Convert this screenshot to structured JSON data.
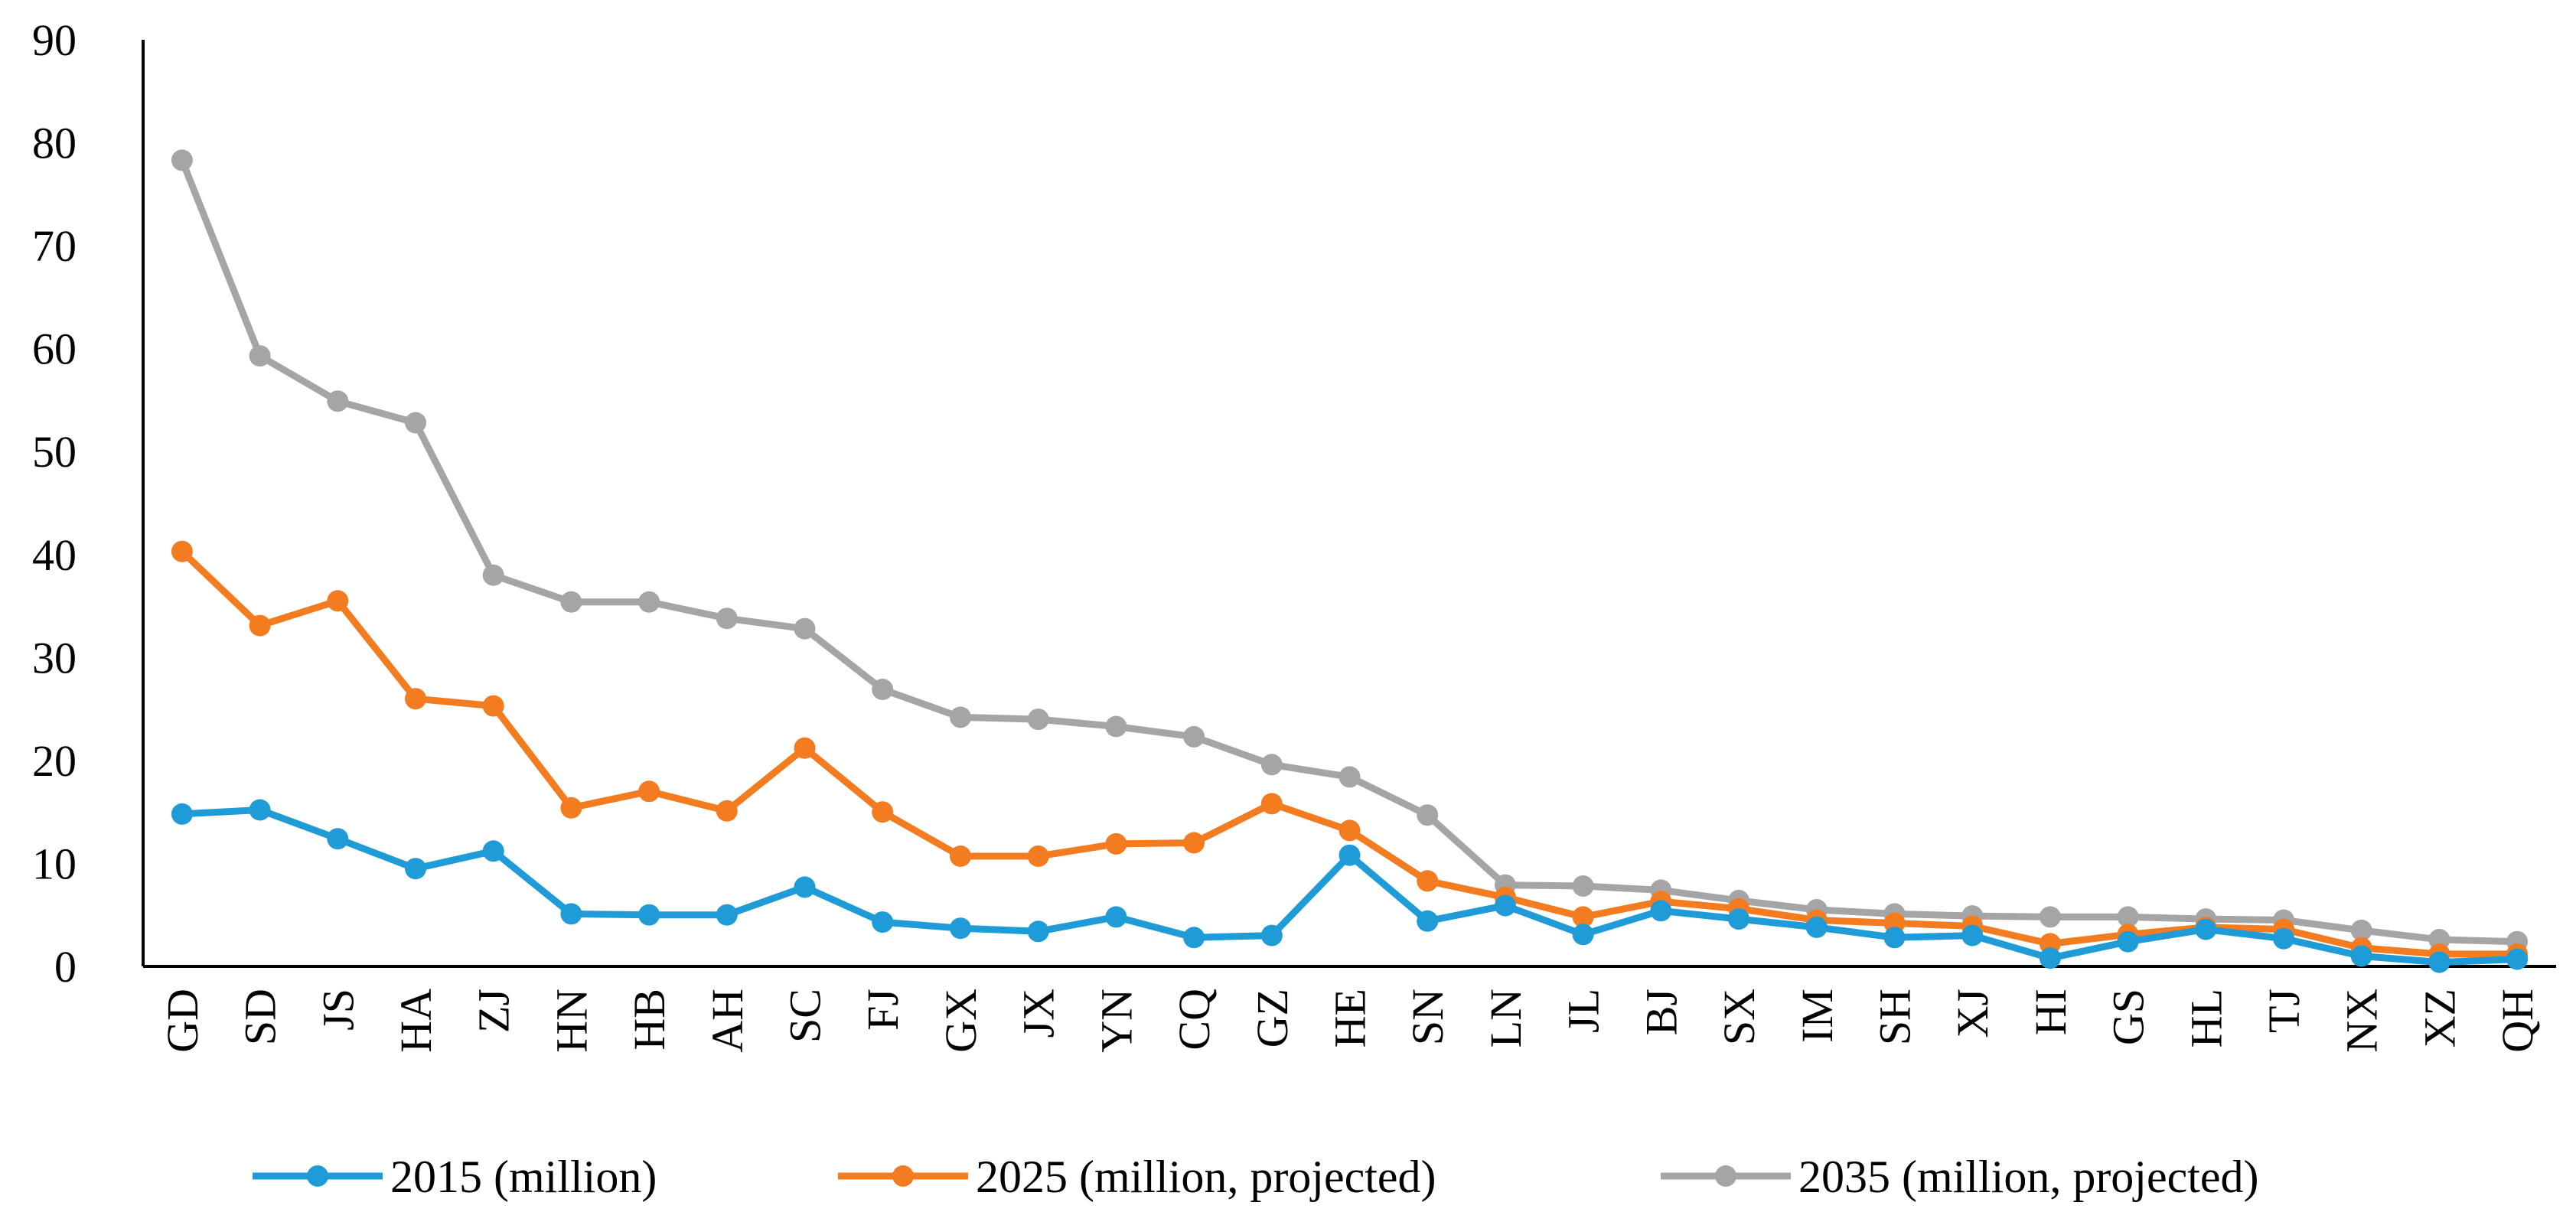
{
  "chart_data": {
    "type": "line",
    "title": "",
    "xlabel": "",
    "ylabel": "",
    "ylim": [
      0,
      90
    ],
    "yticks": [
      "0",
      "10",
      "20",
      "30",
      "40",
      "50",
      "60",
      "70",
      "80",
      "90"
    ],
    "grid": false,
    "legend_position": "bottom",
    "categories": [
      "GD",
      "SD",
      "JS",
      "HA",
      "ZJ",
      "HN",
      "HB",
      "AH",
      "SC",
      "FJ",
      "GX",
      "JX",
      "YN",
      "CQ",
      "GZ",
      "HE",
      "SN",
      "LN",
      "JL",
      "BJ",
      "SX",
      "IM",
      "SH",
      "XJ",
      "HI",
      "GS",
      "HL",
      "TJ",
      "NX",
      "XZ",
      "QH"
    ],
    "series": [
      {
        "name": "2015 (million)",
        "color": "#1f9bd7",
        "values": [
          14.8,
          15.2,
          12.4,
          9.5,
          11.2,
          5.1,
          5.0,
          5.0,
          7.7,
          4.3,
          3.7,
          3.4,
          4.8,
          2.8,
          3.0,
          10.8,
          4.4,
          5.9,
          3.1,
          5.4,
          4.6,
          3.8,
          2.8,
          3.0,
          0.8,
          2.4,
          3.6,
          2.7,
          1.0,
          0.4,
          0.7
        ]
      },
      {
        "name": "2025 (million, projected)",
        "color": "#f47c20",
        "values": [
          40.3,
          33.1,
          35.5,
          26.0,
          25.3,
          15.4,
          17.0,
          15.1,
          21.2,
          15.0,
          10.7,
          10.7,
          11.9,
          12.0,
          15.8,
          13.2,
          8.3,
          6.7,
          4.8,
          6.3,
          5.6,
          4.5,
          4.2,
          3.9,
          2.2,
          3.1,
          3.8,
          3.6,
          1.8,
          1.2,
          1.2
        ]
      },
      {
        "name": "2035 (million, projected)",
        "color": "#a5a5a5",
        "values": [
          78.3,
          59.3,
          54.9,
          52.8,
          38.0,
          35.4,
          35.4,
          33.8,
          32.8,
          26.9,
          24.2,
          24.0,
          23.3,
          22.3,
          19.6,
          18.4,
          14.7,
          7.9,
          7.8,
          7.4,
          6.4,
          5.5,
          5.1,
          4.9,
          4.8,
          4.8,
          4.6,
          4.5,
          3.5,
          2.6,
          2.4
        ]
      }
    ]
  }
}
